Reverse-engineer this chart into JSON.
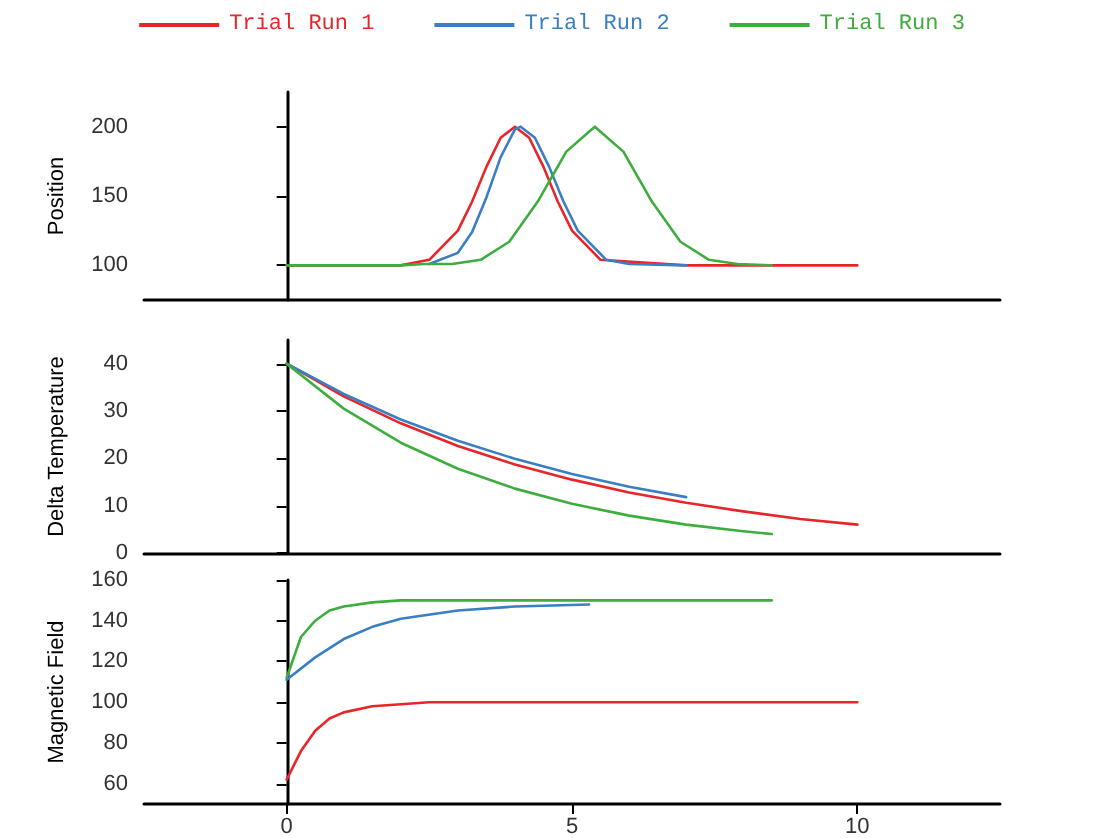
{
  "chart_data": [
    {
      "type": "line",
      "ylabel": "Position",
      "legend": "top",
      "xlim": [
        -2.5,
        12.5
      ],
      "ylim": [
        75,
        225
      ],
      "yticks": [
        100,
        150,
        200
      ],
      "tick_labels": "y",
      "series": [
        {
          "name": "Trial Run 1",
          "color": "#e8262a",
          "x": [
            0,
            2,
            2.5,
            3,
            3.25,
            3.5,
            3.75,
            4,
            4.25,
            4.5,
            4.75,
            5,
            5.5,
            7,
            8,
            9,
            10
          ],
          "values": [
            100,
            100,
            104,
            125,
            146,
            171,
            192,
            200,
            192,
            171,
            146,
            125,
            104,
            100,
            100,
            100,
            100
          ]
        },
        {
          "name": "Trial Run 2",
          "color": "#3a7ec4",
          "x": [
            2.5,
            3,
            3.25,
            3.5,
            3.75,
            4,
            4.1,
            4.35,
            4.6,
            4.85,
            5.1,
            5.6,
            6,
            7
          ],
          "values": [
            101,
            109,
            124,
            149,
            178,
            198,
            200,
            192,
            171,
            146,
            125,
            104,
            101,
            100
          ]
        },
        {
          "name": "Trial Run 3",
          "color": "#3dae3d",
          "x": [
            0,
            1,
            2,
            2.4,
            2.9,
            3.4,
            3.9,
            4.4,
            4.9,
            5.4,
            5.9,
            6.4,
            6.9,
            7.4,
            7.9,
            8.5
          ],
          "values": [
            100,
            100,
            100,
            101,
            101,
            104,
            117,
            146,
            182,
            200,
            182,
            146,
            117,
            104,
            101,
            100
          ]
        }
      ]
    },
    {
      "type": "line",
      "ylabel": "Delta Temperature",
      "xlim": [
        -2.5,
        12.5
      ],
      "ylim": [
        0,
        45
      ],
      "yticks": [
        0,
        10,
        20,
        30,
        40
      ],
      "tick_labels": "y",
      "series": [
        {
          "color": "#e8262a",
          "x": [
            0,
            1,
            2,
            3,
            4,
            5,
            6,
            7,
            8,
            9,
            10
          ],
          "values": [
            40,
            33.1,
            27.4,
            22.6,
            18.7,
            15.5,
            12.8,
            10.6,
            8.8,
            7.2,
            6.0
          ]
        },
        {
          "color": "#3a7ec4",
          "x": [
            0,
            1,
            2,
            3,
            4,
            5,
            6,
            7
          ],
          "values": [
            40,
            33.6,
            28.2,
            23.7,
            19.9,
            16.7,
            14.0,
            11.8
          ]
        },
        {
          "color": "#3dae3d",
          "x": [
            0,
            1,
            2,
            3,
            4,
            5,
            6,
            7,
            8,
            8.5
          ],
          "values": [
            40,
            30.5,
            23.3,
            17.8,
            13.6,
            10.4,
            7.9,
            6.0,
            4.6,
            4.0
          ]
        }
      ]
    },
    {
      "type": "line",
      "ylabel": "Magnetic Field",
      "xlim": [
        -2.5,
        12.5
      ],
      "xticks": [
        0,
        5,
        10
      ],
      "ylim": [
        50,
        160
      ],
      "yticks": [
        60,
        80,
        100,
        120,
        140,
        160
      ],
      "series": [
        {
          "color": "#e8262a",
          "x": [
            0,
            0.25,
            0.5,
            0.75,
            1,
            1.5,
            2,
            2.5,
            5,
            10
          ],
          "values": [
            62,
            76,
            86,
            92,
            95,
            98,
            99,
            100,
            100,
            100
          ]
        },
        {
          "color": "#3a7ec4",
          "x": [
            0,
            0.5,
            1,
            1.5,
            2,
            3,
            4,
            5.3
          ],
          "values": [
            111,
            122,
            131,
            137,
            141,
            145,
            147,
            148
          ]
        },
        {
          "color": "#3dae3d",
          "x": [
            0,
            0.25,
            0.5,
            0.75,
            1,
            1.5,
            2,
            3,
            8.5
          ],
          "values": [
            112,
            132,
            140,
            145,
            147,
            149,
            150,
            150,
            150
          ]
        }
      ]
    }
  ]
}
